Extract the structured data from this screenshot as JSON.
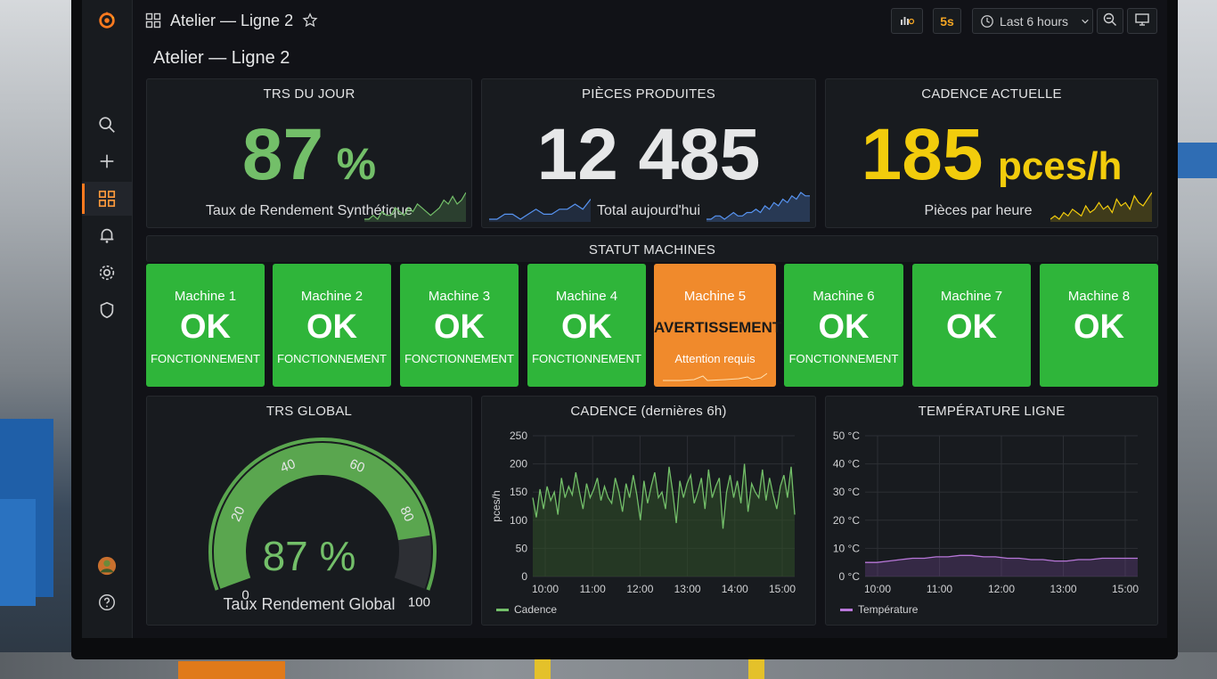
{
  "header": {
    "title": "Atelier — Ligne 2",
    "refresh": "5s",
    "time_range": "Last 6 hours"
  },
  "page_title": "Atelier — Ligne 2",
  "stats": [
    {
      "title": "TRS DU JOUR",
      "value": "87",
      "unit": "%",
      "subtitle": "Taux de Rendement Synthétique",
      "color": "#73bf69"
    },
    {
      "title": "PIÈCES PRODUITES",
      "value": "12 485",
      "unit": "",
      "subtitle": "Total aujourd'hui",
      "color": "#e6e7e8"
    },
    {
      "title": "CADENCE ACTUELLE",
      "value": "185",
      "unit": "pces/h",
      "subtitle": "Pièces par heure",
      "color": "#f2cc0c"
    }
  ],
  "status": {
    "title": "STATUT MACHINES",
    "machines": [
      {
        "name": "Machine 1",
        "state": "OK",
        "detail": "FONCTIONNEMENT",
        "level": "ok"
      },
      {
        "name": "Machine 2",
        "state": "OK",
        "detail": "FONCTIONNEMENT",
        "level": "ok"
      },
      {
        "name": "Machine 3",
        "state": "OK",
        "detail": "FONCTIONNEMENT",
        "level": "ok"
      },
      {
        "name": "Machine 4",
        "state": "OK",
        "detail": "FONCTIONNEMENT",
        "level": "ok"
      },
      {
        "name": "Machine 5",
        "state": "AVERTISSEMENT",
        "detail": "Attention requis",
        "level": "warn"
      },
      {
        "name": "Machine 6",
        "state": "OK",
        "detail": "FONCTIONNEMENT",
        "level": "ok"
      },
      {
        "name": "Machine 7",
        "state": "OK",
        "detail": "",
        "level": "ok"
      },
      {
        "name": "Machine 8",
        "state": "OK",
        "detail": "",
        "level": "ok"
      }
    ]
  },
  "gauge": {
    "title": "TRS GLOBAL",
    "value": 87,
    "value_text": "87 %",
    "subtitle": "Taux Rendement Global",
    "ticks": [
      "0",
      "20",
      "40",
      "60",
      "80",
      "100"
    ],
    "min": 0,
    "max": 100
  },
  "colors": {
    "green": "#73bf69",
    "orange": "#f08a2c",
    "yellow": "#f2cc0c",
    "blue": "#5794f2",
    "purple": "#b877d9",
    "accent": "#ff7a1f"
  },
  "chart_data": [
    {
      "type": "line",
      "title": "CADENCE (dernières 6h)",
      "ylabel": "pces/h",
      "ylim": [
        0,
        250
      ],
      "yticks": [
        "250",
        "200",
        "150",
        "100",
        "50",
        "0"
      ],
      "xticks": [
        "10:00",
        "11:00",
        "12:00",
        "13:00",
        "14:00",
        "15:00"
      ],
      "series": [
        {
          "name": "Cadence",
          "values": [
            140,
            105,
            155,
            120,
            160,
            135,
            150,
            110,
            175,
            140,
            160,
            145,
            185,
            150,
            120,
            165,
            140,
            155,
            175,
            135,
            160,
            140,
            130,
            175,
            150,
            115,
            165,
            140,
            180,
            145,
            100,
            170,
            130,
            160,
            185,
            140,
            150,
            120,
            195,
            150,
            95,
            170,
            140,
            165,
            180,
            130,
            150,
            175,
            120,
            190,
            140,
            160,
            175,
            85,
            150,
            180,
            140,
            170,
            130,
            200,
            115,
            165,
            150,
            140,
            190,
            135,
            175,
            145,
            120,
            160,
            180,
            140,
            195,
            110
          ]
        }
      ]
    },
    {
      "type": "line",
      "title": "TEMPÉRATURE LIGNE",
      "ylim": [
        0,
        50
      ],
      "yticks": [
        "50 °C",
        "40 °C",
        "30 °C",
        "20 °C",
        "10 °C",
        "0 °C"
      ],
      "xticks": [
        "10:00",
        "11:00",
        "12:00",
        "13:00",
        "15:00"
      ],
      "series": [
        {
          "name": "Température",
          "values": [
            5,
            5,
            5.5,
            6,
            6.5,
            6.5,
            7,
            7,
            7.5,
            7.5,
            7,
            7,
            6.5,
            6.5,
            6,
            6,
            5.5,
            5.5,
            6,
            6,
            6.5,
            6.5,
            6.5,
            6.5
          ]
        }
      ]
    }
  ],
  "sparklines": [
    [
      3,
      3,
      4,
      3,
      5,
      4,
      4,
      6,
      5,
      4,
      6,
      5,
      7,
      6,
      5,
      4,
      5,
      6,
      8,
      7,
      9,
      7,
      8,
      10
    ],
    [
      2,
      2,
      3,
      3,
      2,
      3,
      4,
      3,
      3,
      4,
      4,
      5,
      4,
      6,
      5,
      7,
      6,
      8,
      7,
      9,
      8,
      10,
      9,
      9
    ],
    [
      3,
      4,
      3,
      5,
      4,
      6,
      5,
      4,
      7,
      5,
      6,
      8,
      6,
      7,
      5,
      9,
      7,
      8,
      6,
      10,
      8,
      7,
      9,
      11
    ]
  ]
}
